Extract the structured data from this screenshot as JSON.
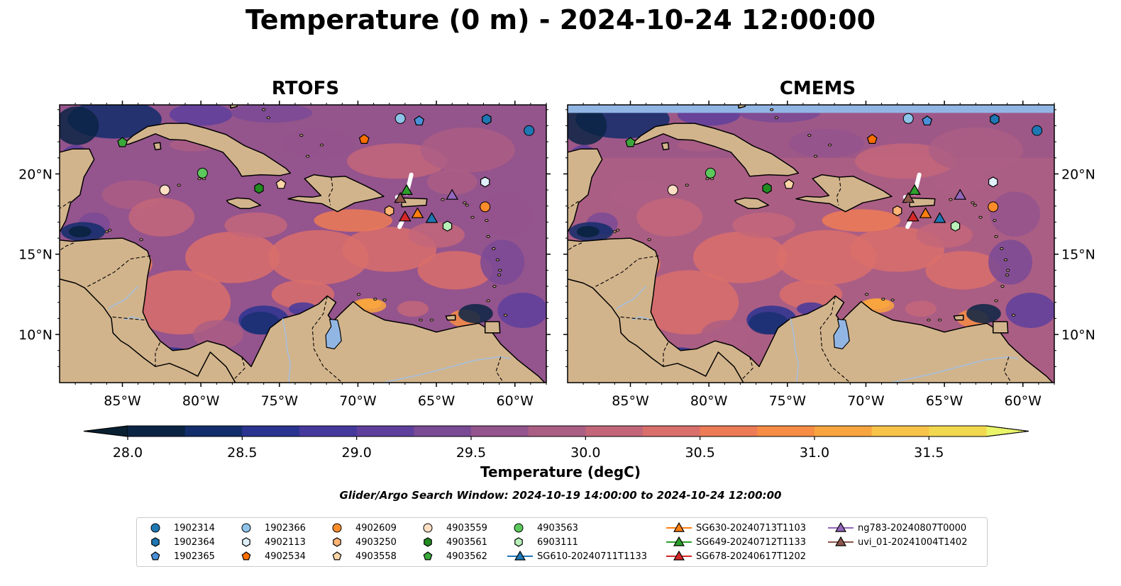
{
  "title": "Temperature (0 m) - 2024-10-24 12:00:00",
  "colorbar": {
    "label": "Temperature (degC)",
    "ticks": [
      28.0,
      28.5,
      29.0,
      29.5,
      30.0,
      30.5,
      31.0,
      31.5
    ],
    "tick_labels": [
      "28.0",
      "28.5",
      "29.0",
      "29.5",
      "30.0",
      "30.5",
      "31.0",
      "31.5"
    ],
    "min": 28.0,
    "max": 31.5,
    "colors": [
      "#0b2444",
      "#122d6b",
      "#2a3490",
      "#45399c",
      "#5e3f9c",
      "#7a4a95",
      "#94548d",
      "#ab5e84",
      "#c3667a",
      "#d96f6b",
      "#ed7b55",
      "#f78d44",
      "#f9a53f",
      "#f7c449",
      "#f2d84f"
    ],
    "under_color": "#082032",
    "over_color": "#eaf56a",
    "extend": "both"
  },
  "search_window": "Glider/Argo Search Window: 2024-10-19 14:00:00 to 2024-10-24 12:00:00",
  "chart_data": [
    {
      "type": "heatmap",
      "title": "RTOFS",
      "variable": "Temperature (degC)",
      "lon_range": [
        -89,
        -58
      ],
      "lat_range": [
        7,
        24.3
      ],
      "xticks": [
        -85,
        -80,
        -75,
        -70,
        -65,
        -60
      ],
      "yticks": [
        10,
        15,
        20
      ],
      "typical_sst_degC": {
        "gulf_of_honduras": 28.2,
        "western_caribbean": 29.6,
        "central_caribbean": 30.2,
        "south_colombia_coast": 28.3,
        "venezuela_coast": 30.8,
        "atlantic_north": 29.5
      }
    },
    {
      "type": "heatmap",
      "title": "CMEMS",
      "variable": "Temperature (degC)",
      "lon_range": [
        -89,
        -58
      ],
      "lat_range": [
        7,
        24.3
      ],
      "xticks": [
        -85,
        -80,
        -75,
        -70,
        -65,
        -60
      ],
      "yticks": [
        10,
        15,
        20
      ],
      "typical_sst_degC": {
        "gulf_of_honduras": 28.2,
        "western_caribbean": 29.8,
        "central_caribbean": 30.3,
        "south_colombia_coast": 28.4,
        "venezuela_coast": 30.8,
        "atlantic_north": 29.5
      }
    }
  ],
  "xtick_labels": [
    "85°W",
    "80°W",
    "75°W",
    "70°W",
    "65°W",
    "60°W"
  ],
  "ytick_labels": [
    "10°N",
    "15°N",
    "20°N"
  ],
  "argo_floats": [
    {
      "id": "1902314",
      "marker": "circle",
      "color": "#1f77b4",
      "lon": -59.1,
      "lat": 22.7
    },
    {
      "id": "1902364",
      "marker": "hexagon",
      "color": "#1f77b4",
      "lon": -61.8,
      "lat": 23.4
    },
    {
      "id": "1902365",
      "marker": "pentagon",
      "color": "#4a90d9",
      "lon": -66.1,
      "lat": 23.3
    },
    {
      "id": "1902366",
      "marker": "circle",
      "color": "#8ec4ea",
      "lon": -67.3,
      "lat": 23.45
    },
    {
      "id": "4902113",
      "marker": "hexagon",
      "color": "#e0f0fb",
      "lon": -61.9,
      "lat": 19.5
    },
    {
      "id": "4902534",
      "marker": "pentagon",
      "color": "#ff6f00",
      "lon": -69.6,
      "lat": 22.15
    },
    {
      "id": "4902609",
      "marker": "circle",
      "color": "#ff8c2a",
      "lon": -61.9,
      "lat": 17.95
    },
    {
      "id": "4903250",
      "marker": "hexagon",
      "color": "#ffb375",
      "lon": -68.0,
      "lat": 17.7
    },
    {
      "id": "4903558",
      "marker": "pentagon",
      "color": "#ffd6a8",
      "lon": -74.9,
      "lat": 19.35
    },
    {
      "id": "4903559",
      "marker": "circle",
      "color": "#ffdfc4",
      "lon": -82.3,
      "lat": 19.0
    },
    {
      "id": "4903561",
      "marker": "hexagon",
      "color": "#228b22",
      "lon": -76.3,
      "lat": 19.1
    },
    {
      "id": "4903562",
      "marker": "pentagon",
      "color": "#3ba83b",
      "lon": -85.0,
      "lat": 21.95
    },
    {
      "id": "4903563",
      "marker": "circle",
      "color": "#5cc85c",
      "lon": -79.9,
      "lat": 20.05
    },
    {
      "id": "6903111",
      "marker": "hexagon",
      "color": "#b8f0b8",
      "lon": -64.3,
      "lat": 16.75
    }
  ],
  "gliders": [
    {
      "id": "SG610-20240711T1133",
      "color": "#1f77b4",
      "lon": -65.3,
      "lat": 17.25
    },
    {
      "id": "SG630-20240713T1103",
      "color": "#ff7f0e",
      "lon": -66.2,
      "lat": 17.55
    },
    {
      "id": "SG649-20240712T1133",
      "color": "#2ca02c",
      "lon": -66.9,
      "lat": 19.0
    },
    {
      "id": "SG678-20240617T1202",
      "color": "#d62728",
      "lon": -67.0,
      "lat": 17.35
    },
    {
      "id": "ng783-20240807T0000",
      "color": "#9467bd",
      "lon": -64.0,
      "lat": 18.7
    },
    {
      "id": "uvi_01-20241004T1402",
      "color": "#8c564b",
      "lon": -67.3,
      "lat": 18.5
    }
  ],
  "legend": {
    "columns": [
      [
        "1902314",
        "1902364",
        "1902365"
      ],
      [
        "1902366",
        "4902113",
        "4902534"
      ],
      [
        "4902609",
        "4903250",
        "4903558"
      ],
      [
        "4903559",
        "4903561",
        "4903562"
      ],
      [
        "4903563",
        "6903111",
        "SG610-20240711T1133"
      ],
      [
        "SG630-20240713T1103",
        "SG649-20240712T1133",
        "SG678-20240617T1202"
      ],
      [
        "ng783-20240807T0000",
        "uvi_01-20241004T1402"
      ]
    ]
  }
}
